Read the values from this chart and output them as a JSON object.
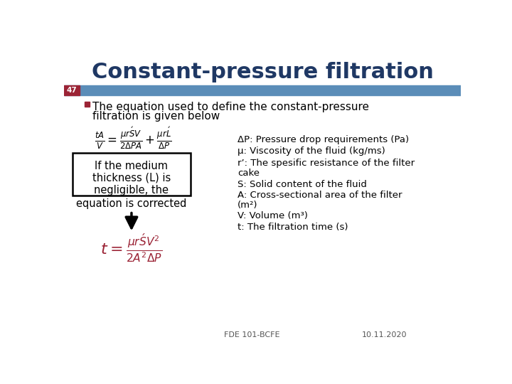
{
  "title": "Constant-pressure filtration",
  "title_color": "#1F3864",
  "title_fontsize": 22,
  "slide_number": "47",
  "slide_number_bg": "#9B2335",
  "slide_number_color": "white",
  "header_bar_color": "#5B8DB8",
  "bullet_text_line1": "The equation used to define the constant-pressure",
  "bullet_text_line2": "filtration is given below",
  "bullet_square_color": "#9B2335",
  "eq2_color": "#9B2335",
  "box_text_lines": [
    "If the medium",
    "thickness (L) is",
    "negligible, the"
  ],
  "below_box_text": "equation is corrected",
  "definitions": [
    "ΔP: Pressure drop requirements (Pa)",
    "μ: Viscosity of the fluid (kg/ms)",
    "r’: The spesific resistance of the filter",
    "cake",
    "S: Solid content of the fluid",
    "A: Cross-sectional area of the filter",
    "(m²)",
    "V: Volume (m³)",
    "t: The filtration time (s)"
  ],
  "footer_left": "FDE 101-BCFE",
  "footer_right": "10.11.2020",
  "bg_color": "#FFFFFF"
}
